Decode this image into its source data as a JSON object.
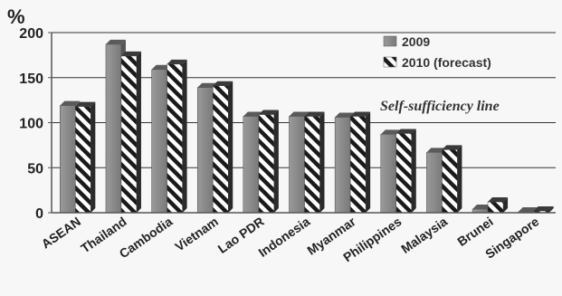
{
  "chart_data": {
    "type": "bar",
    "ylabel": "%",
    "ylim": [
      0,
      200
    ],
    "yticks": [
      0,
      50,
      100,
      150,
      200
    ],
    "annotation": "Self-sufficiency line",
    "categories": [
      "ASEAN",
      "Thailand",
      "Cambodia",
      "Vietnam",
      "Lao PDR",
      "Indonesia",
      "Myanmar",
      "Philippines",
      "Malaysia",
      "Brunei",
      "Singapore"
    ],
    "series": [
      {
        "name": "2009",
        "values": [
          119,
          187,
          159,
          139,
          107,
          107,
          106,
          87,
          67,
          4,
          1
        ]
      },
      {
        "name": "2010 (forecast)",
        "values": [
          118,
          174,
          165,
          141,
          109,
          107,
          107,
          88,
          70,
          12,
          2
        ]
      }
    ],
    "legend_position": "top-right",
    "grid": true,
    "colors": {
      "solid": "#8c8c8c",
      "stripe_dark": "#1a1a1a",
      "stripe_light": "#ffffff"
    }
  }
}
